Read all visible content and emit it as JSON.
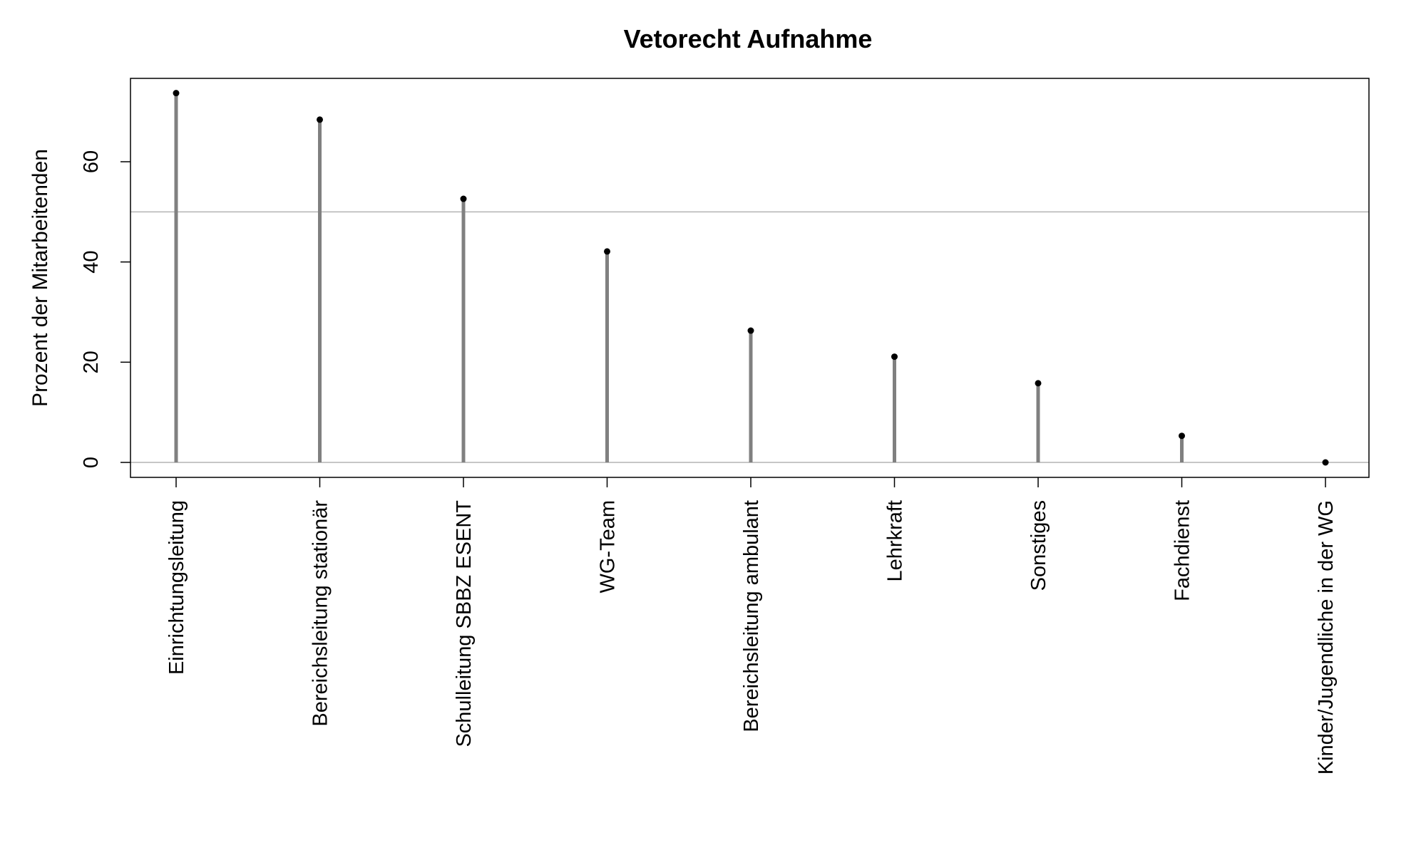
{
  "chart_data": {
    "type": "lollipop",
    "title": "Vetorecht Aufnahme",
    "xlabel": "",
    "ylabel": "Prozent der Mitarbeitenden",
    "categories": [
      "Einrichtungsleitung",
      "Bereichsleitung stationär",
      "Schulleitung SBBZ ESENT",
      "WG-Team",
      "Bereichsleitung ambulant",
      "Lehrkraft",
      "Sonstiges",
      "Fachdienst",
      "Kinder/Jugendliche in der WG"
    ],
    "values": [
      73.7,
      68.4,
      52.6,
      42.1,
      26.3,
      21.1,
      15.8,
      5.3,
      0
    ],
    "ylim": [
      -3,
      77
    ],
    "yticks": [
      0,
      20,
      40,
      60
    ],
    "reference_lines": [
      0,
      50
    ],
    "colors": {
      "stem": "#808080",
      "point": "#000000",
      "refline": "#b3b3b3"
    },
    "grid": false
  }
}
